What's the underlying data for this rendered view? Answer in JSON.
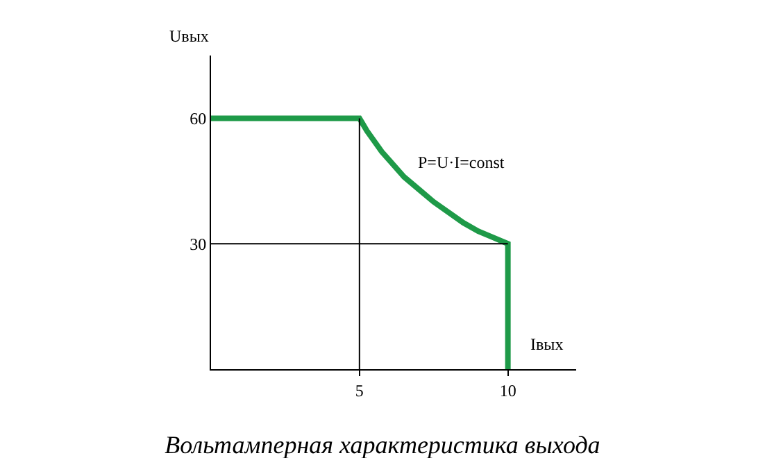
{
  "chart_data": {
    "type": "line",
    "title": "Вольтамперная характеристика выхода",
    "xlabel": "Iвых",
    "ylabel": "Uвых",
    "x": [
      0,
      5,
      5.1,
      5.25,
      5.5,
      5.75,
      6,
      6.5,
      7,
      7.5,
      8,
      8.5,
      9,
      9.5,
      10,
      10
    ],
    "series": [
      {
        "color": "#1e9a48",
        "values": [
          60,
          60,
          58.8,
          57,
          54.5,
          52,
          50,
          46,
          43,
          40,
          37.5,
          35,
          33,
          31.5,
          30,
          0
        ]
      }
    ],
    "xlim": [
      0,
      12.3
    ],
    "ylim": [
      0,
      75
    ],
    "xticks": [
      5,
      10
    ],
    "yticks": [
      30,
      60
    ],
    "ref_lines": [
      {
        "axis": "x",
        "value": 5,
        "color": "#000000"
      },
      {
        "axis": "y",
        "value": 30,
        "color": "#000000"
      }
    ],
    "annotations": [
      "P=U·I=const"
    ],
    "marker": "none",
    "line_style": "solid"
  }
}
